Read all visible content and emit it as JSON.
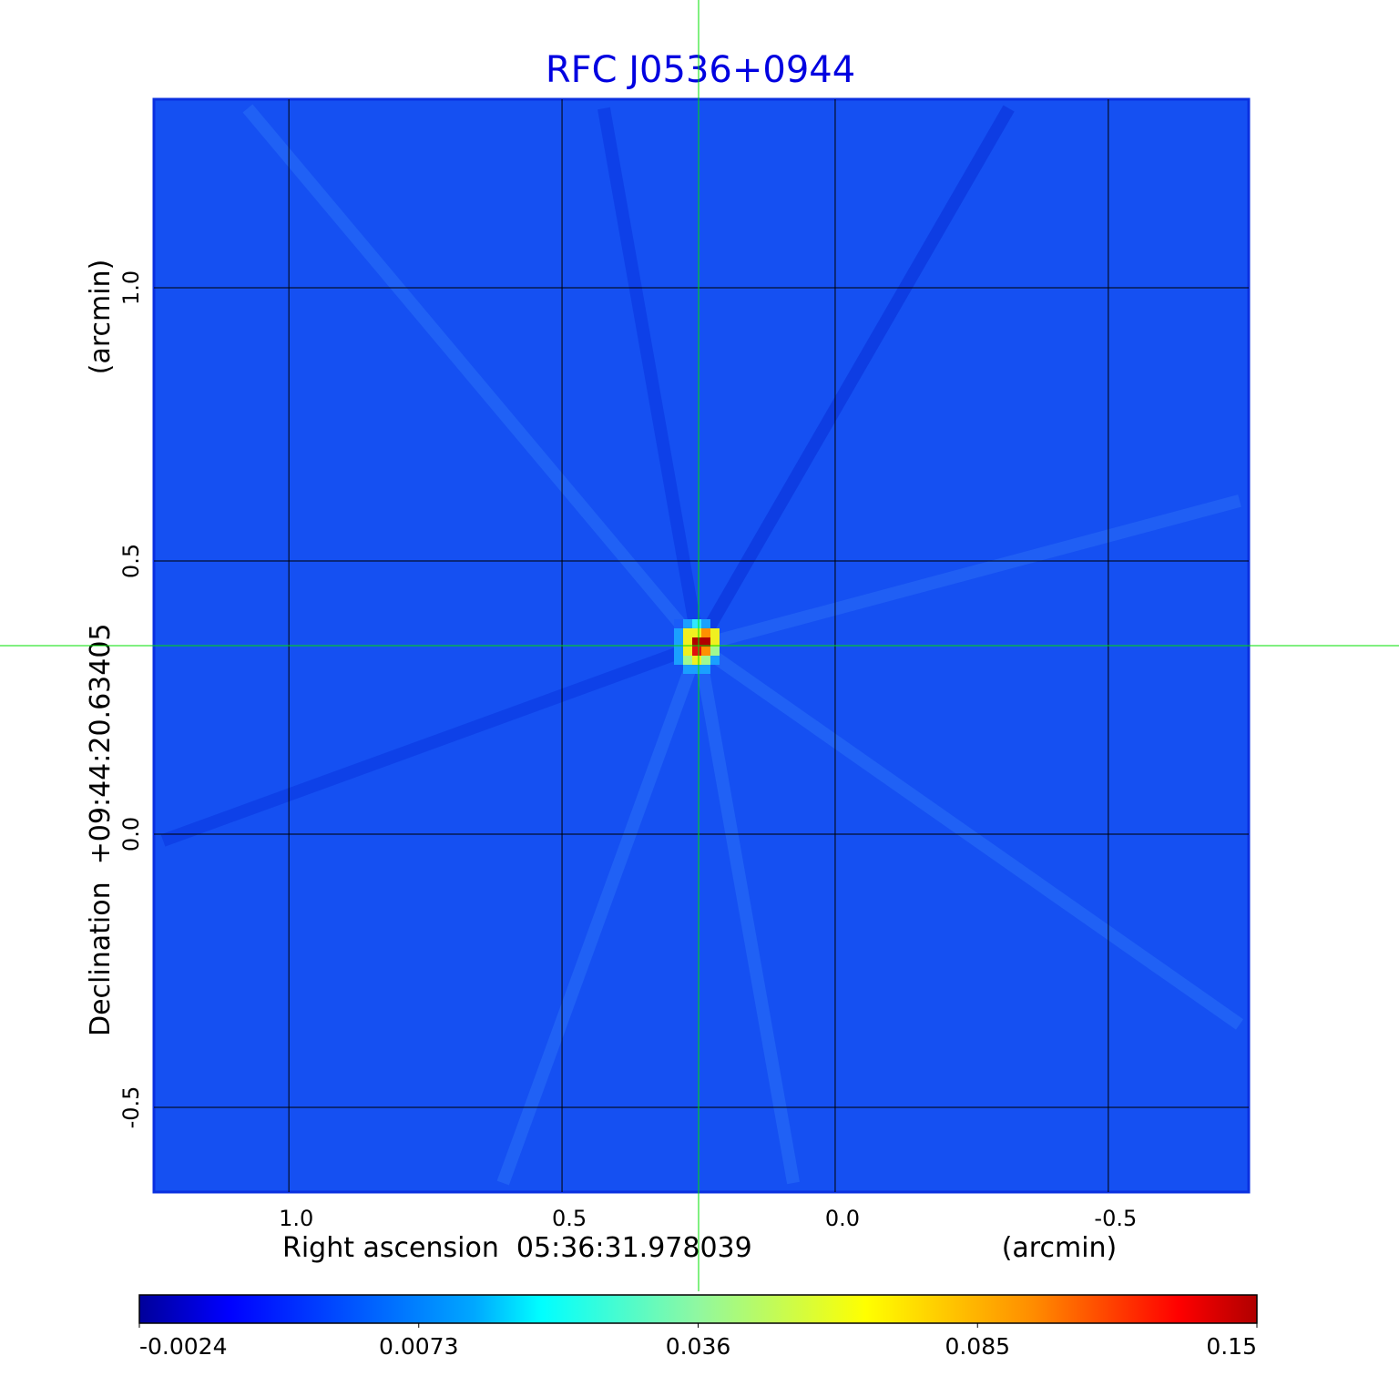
{
  "chart_data": {
    "type": "heatmap",
    "title": "RFC J0536+0944",
    "xlabel": "Right ascension  05:36:31.978039",
    "xunit": "(arcmin)",
    "ylabel": "Declination  +09:44:20.63405",
    "yunit": "(arcmin)",
    "xlim": [
      1.247,
      -0.757
    ],
    "ylim": [
      -0.655,
      1.345
    ],
    "xticks": [
      1.0,
      0.5,
      0.0,
      -0.5
    ],
    "xtick_labels": [
      "1.0",
      "0.5",
      "0.0",
      "-0.5"
    ],
    "yticks": [
      1.0,
      0.5,
      0.0,
      -0.5
    ],
    "ytick_labels": [
      "1.0",
      "0.5",
      "0.0",
      "-0.5"
    ],
    "grid": true,
    "crosshair": {
      "x": 0.25,
      "y": 0.345,
      "color": "#00e000"
    },
    "peak": {
      "x": 0.25,
      "y": 0.345,
      "value": 0.15
    },
    "background_level": 0.0,
    "colormap": "jet",
    "colorbar": {
      "placement": "bottom",
      "range": [
        -0.0024,
        0.15
      ],
      "tick_labels": [
        "-0.0024",
        "0.0073",
        "0.036",
        "0.085",
        "0.15"
      ]
    },
    "title_color": "#0000e0"
  }
}
